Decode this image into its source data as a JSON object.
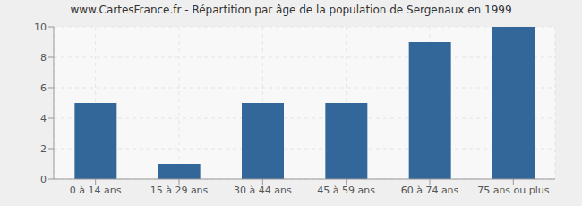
{
  "chart_data": {
    "type": "bar",
    "title": "www.CartesFrance.fr - Répartition par âge de la population de Sergenaux en 1999",
    "categories": [
      "0 à 14 ans",
      "15 à 29 ans",
      "30 à 44 ans",
      "45 à 59 ans",
      "60 à 74 ans",
      "75 ans ou plus"
    ],
    "values": [
      5,
      1,
      5,
      5,
      9,
      10
    ],
    "color": "#336699",
    "ylim": [
      0,
      10
    ],
    "yticks": [
      0,
      2,
      4,
      6,
      8,
      10
    ],
    "grid": true
  }
}
